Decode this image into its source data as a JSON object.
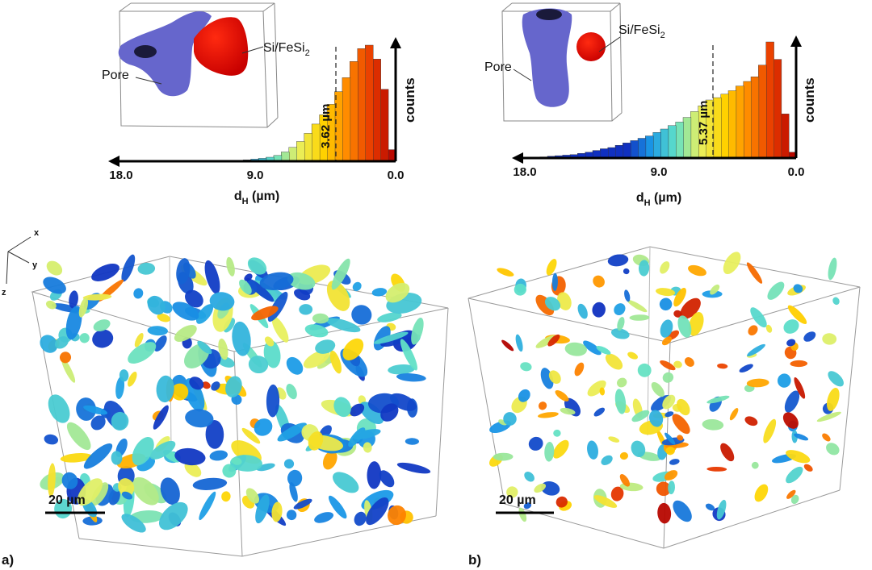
{
  "panels": [
    {
      "id": "a",
      "label": "a)",
      "scale_bar": "20 µm",
      "inset": {
        "pore_label": "Pore",
        "particle_label_main": "Si/FeSi",
        "particle_label_sub": "2"
      },
      "histogram": {
        "xlabel_main": "d",
        "xlabel_sub": "H",
        "xlabel_unit": " (µm)",
        "ylabel": "counts",
        "ticks": [
          "18.0",
          "9.0",
          "0.0"
        ],
        "median_label": "3.62 µm"
      }
    },
    {
      "id": "b",
      "label": "b)",
      "scale_bar": "20 µm",
      "inset": {
        "pore_label": "Pore",
        "particle_label_main": "Si/FeSi",
        "particle_label_sub": "2"
      },
      "histogram": {
        "xlabel_main": "d",
        "xlabel_sub": "H",
        "xlabel_unit": " (µm)",
        "ylabel": "counts",
        "ticks": [
          "18.0",
          "9.0",
          "0.0"
        ],
        "median_label": "5.37 µm"
      }
    }
  ],
  "axes_triad": {
    "x": "x",
    "y": "y",
    "z": "z"
  },
  "chart_data": [
    {
      "type": "bar",
      "title": "",
      "xlabel": "dH (µm)",
      "ylabel": "counts",
      "x_reversed": true,
      "xlim": [
        18.0,
        0.0
      ],
      "median": 3.62,
      "x": [
        0.25,
        0.75,
        1.25,
        1.75,
        2.25,
        2.75,
        3.25,
        3.75,
        4.25,
        4.75,
        5.25,
        5.75,
        6.25,
        6.75,
        7.25,
        7.75,
        8.25,
        8.75,
        9.25,
        9.75,
        10.25,
        10.75,
        11.25,
        11.75,
        12.25
      ],
      "values": [
        0.1,
        0.62,
        0.88,
        1.0,
        0.97,
        0.86,
        0.72,
        0.6,
        0.49,
        0.4,
        0.32,
        0.24,
        0.17,
        0.12,
        0.08,
        0.05,
        0.035,
        0.025,
        0.018,
        0.012,
        0.008,
        0.006,
        0.004,
        0.003,
        0.002
      ],
      "color_scale": [
        "#b00000",
        "#e83a00",
        "#ff8a00",
        "#ffd400",
        "#e8f060",
        "#5fe0c8",
        "#1a9ae8",
        "#1030c0"
      ]
    },
    {
      "type": "bar",
      "title": "",
      "xlabel": "dH (µm)",
      "ylabel": "counts",
      "x_reversed": true,
      "xlim": [
        18.0,
        0.0
      ],
      "median": 5.37,
      "x": [
        0.25,
        0.75,
        1.25,
        1.75,
        2.25,
        2.75,
        3.25,
        3.75,
        4.25,
        4.75,
        5.25,
        5.75,
        6.25,
        6.75,
        7.25,
        7.75,
        8.25,
        8.75,
        9.25,
        9.75,
        10.25,
        10.75,
        11.25,
        11.75,
        12.25,
        12.75,
        13.25,
        13.75,
        14.25,
        14.75,
        15.25,
        15.75,
        16.25,
        16.75
      ],
      "values": [
        0.05,
        0.38,
        0.85,
        1.0,
        0.8,
        0.7,
        0.66,
        0.62,
        0.58,
        0.55,
        0.52,
        0.5,
        0.45,
        0.4,
        0.35,
        0.31,
        0.28,
        0.25,
        0.22,
        0.19,
        0.17,
        0.15,
        0.13,
        0.11,
        0.09,
        0.08,
        0.065,
        0.05,
        0.04,
        0.03,
        0.025,
        0.02,
        0.015,
        0.01
      ],
      "color_scale": [
        "#b00000",
        "#e83a00",
        "#ff8a00",
        "#ffd400",
        "#e8f060",
        "#5fe0c8",
        "#1a9ae8",
        "#1030c0"
      ]
    }
  ]
}
